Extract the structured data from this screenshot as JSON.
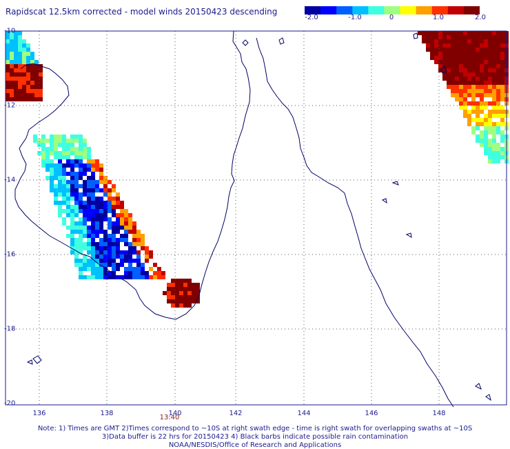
{
  "title": "Rapidscat 12.5km corrected - model winds 20150423 descending",
  "colorbar": {
    "ticks": [
      "-2.0",
      "-1.0",
      "0",
      "1.0",
      "2.0"
    ],
    "range": [
      -2.0,
      2.0
    ],
    "colors": [
      "#0000a0",
      "#0000ff",
      "#0060ff",
      "#00c0ff",
      "#40ffe0",
      "#a0ff80",
      "#ffff00",
      "#ffa000",
      "#ff3000",
      "#c00000",
      "#800000"
    ]
  },
  "map": {
    "lon_range": [
      135.2,
      149.95
    ],
    "lat_range": [
      -20,
      -10
    ],
    "lat_ticks": [
      "-10",
      "-12",
      "-14",
      "-16",
      "-18",
      "-20"
    ],
    "lon_ticks": [
      "136",
      "138",
      "140",
      "142",
      "144",
      "146",
      "148"
    ],
    "grid": "dotted",
    "time_label": "13:40",
    "coast_color": "#000066",
    "frame_color": "#1a1a8c"
  },
  "notes": [
    "Note: 1) Times are GMT 2)Times correspond to ~10S at right swath edge - time is right swath for overlapping swaths at ~10S",
    "3)Data buffer is 22 hrs for 20150423 4) Black barbs indicate possible rain contamination",
    "NOAA/NESDIS/Office of Research and Applications"
  ]
}
